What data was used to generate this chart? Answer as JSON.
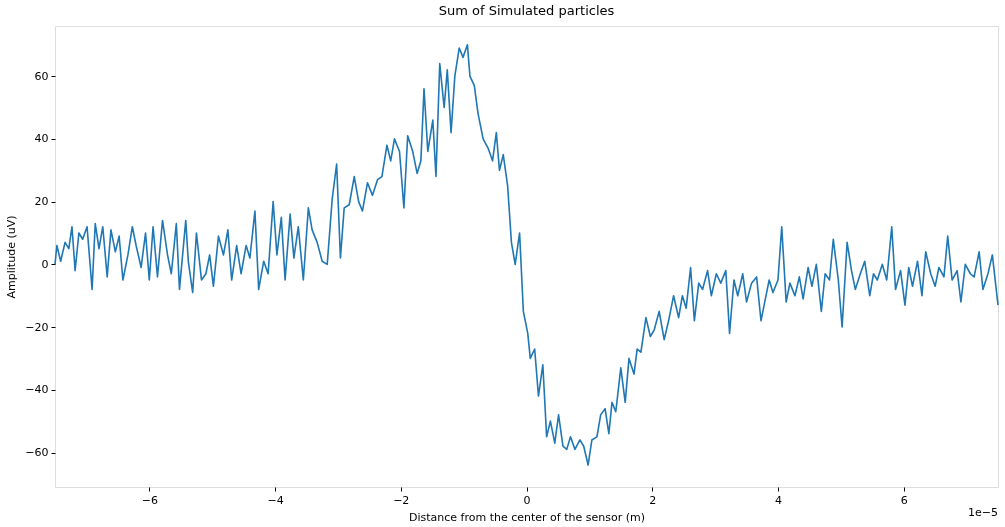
{
  "chart_data": {
    "type": "line",
    "title": "Sum of Simulated particles",
    "xlabel": "Distance from the center of the sensor (m)",
    "ylabel": "Amplitude (uV)",
    "annotations": [
      "1e−5"
    ],
    "x": [
      -7.5,
      -7.47,
      -7.41,
      -7.34,
      -7.28,
      -7.23,
      -7.18,
      -7.12,
      -7.06,
      -6.99,
      -6.91,
      -6.86,
      -6.8,
      -6.74,
      -6.67,
      -6.61,
      -6.54,
      -6.48,
      -6.42,
      -6.34,
      -6.27,
      -6.21,
      -6.13,
      -6.06,
      -6.0,
      -5.94,
      -5.87,
      -5.79,
      -5.71,
      -5.65,
      -5.57,
      -5.52,
      -5.42,
      -5.38,
      -5.31,
      -5.25,
      -5.17,
      -5.1,
      -5.04,
      -4.98,
      -4.9,
      -4.82,
      -4.75,
      -4.69,
      -4.61,
      -4.54,
      -4.46,
      -4.4,
      -4.32,
      -4.26,
      -4.18,
      -4.11,
      -4.03,
      -3.97,
      -3.9,
      -3.84,
      -3.76,
      -3.7,
      -3.63,
      -3.55,
      -3.47,
      -3.41,
      -3.33,
      -3.25,
      -3.17,
      -3.09,
      -3.02,
      -2.96,
      -2.9,
      -2.82,
      -2.74,
      -2.67,
      -2.61,
      -2.53,
      -2.45,
      -2.37,
      -2.3,
      -2.22,
      -2.16,
      -2.1,
      -2.02,
      -1.95,
      -1.89,
      -1.81,
      -1.74,
      -1.68,
      -1.63,
      -1.57,
      -1.49,
      -1.44,
      -1.38,
      -1.31,
      -1.26,
      -1.2,
      -1.14,
      -1.07,
      -1.01,
      -0.94,
      -0.9,
      -0.83,
      -0.77,
      -0.69,
      -0.61,
      -0.54,
      -0.48,
      -0.43,
      -0.37,
      -0.3,
      -0.24,
      -0.18,
      -0.11,
      -0.05,
      0.02,
      0.06,
      0.13,
      0.19,
      0.26,
      0.32,
      0.38,
      0.45,
      0.51,
      0.58,
      0.64,
      0.7,
      0.77,
      0.85,
      0.91,
      0.98,
      1.04,
      1.12,
      1.18,
      1.25,
      1.31,
      1.36,
      1.42,
      1.5,
      1.57,
      1.63,
      1.71,
      1.76,
      1.82,
      1.9,
      1.97,
      2.03,
      2.11,
      2.19,
      2.26,
      2.34,
      2.42,
      2.48,
      2.54,
      2.61,
      2.67,
      2.74,
      2.8,
      2.88,
      2.94,
      3.02,
      3.09,
      3.17,
      3.23,
      3.3,
      3.36,
      3.44,
      3.5,
      3.58,
      3.66,
      3.73,
      3.81,
      3.86,
      3.92,
      4.0,
      4.06,
      4.13,
      4.19,
      4.27,
      4.34,
      4.4,
      4.48,
      4.54,
      4.61,
      4.69,
      4.75,
      4.82,
      4.88,
      4.96,
      5.02,
      5.1,
      5.17,
      5.23,
      5.31,
      5.38,
      5.46,
      5.52,
      5.58,
      5.66,
      5.73,
      5.81,
      5.87,
      5.95,
      6.02,
      6.08,
      6.14,
      6.22,
      6.29,
      6.35,
      6.43,
      6.5,
      6.56,
      6.64,
      6.7,
      6.77,
      6.85,
      6.91,
      6.98,
      7.06,
      7.12,
      7.2,
      7.26,
      7.34,
      7.41,
      7.5
    ],
    "series": [
      {
        "color": "#1f77b4",
        "values": [
          0,
          6,
          1,
          7,
          5,
          12,
          -2,
          10,
          8,
          12,
          -8,
          13,
          5,
          12,
          -4,
          11,
          4,
          9,
          -5,
          3,
          12,
          6,
          -1,
          10,
          -5,
          12,
          -4,
          14,
          3,
          -3,
          13,
          -8,
          14,
          1,
          -9,
          10,
          -5,
          -3,
          3,
          -7,
          9,
          3,
          11,
          -5,
          6,
          -3,
          6,
          2,
          17,
          -8,
          1,
          -3,
          20,
          3,
          15,
          -5,
          16,
          2,
          12,
          -5,
          18,
          11,
          7,
          1,
          0,
          21,
          32,
          2,
          18,
          19,
          28,
          20,
          17,
          26,
          22,
          27,
          28,
          38,
          33,
          40,
          36,
          18,
          41,
          36,
          29,
          33,
          56,
          36,
          46,
          28,
          64,
          50,
          62,
          42,
          60,
          69,
          66,
          70,
          60,
          57,
          48,
          40,
          37,
          33,
          42,
          30,
          35,
          25,
          7,
          0,
          10,
          -15,
          -22,
          -30,
          -27,
          -42,
          -32,
          -55,
          -50,
          -57,
          -48,
          -58,
          -59,
          -55,
          -59,
          -56,
          -58,
          -64,
          -56,
          -55,
          -48,
          -46,
          -54,
          -44,
          -47,
          -33,
          -44,
          -30,
          -35,
          -27,
          -28,
          -17,
          -23,
          -21,
          -15,
          -24,
          -18,
          -10,
          -17,
          -10,
          -14,
          -1,
          -18,
          -6,
          -8,
          -2,
          -10,
          -3,
          -6,
          -2,
          -22,
          -5,
          -10,
          -3,
          -12,
          -6,
          -4,
          -18,
          -10,
          -5,
          -9,
          -5,
          12,
          -12,
          -6,
          -10,
          -4,
          -11,
          -1,
          -7,
          0,
          -15,
          -3,
          -5,
          8,
          -5,
          -20,
          7,
          -2,
          -8,
          -3,
          1,
          -10,
          -3,
          -5,
          0,
          -5,
          12,
          -8,
          -2,
          -13,
          -1,
          -7,
          1,
          -10,
          4,
          -3,
          -7,
          -1,
          -4,
          9,
          -5,
          -2,
          -12,
          0,
          -3,
          -4,
          4,
          -8,
          -3,
          3,
          -13
        ]
      }
    ],
    "xlim": [
      -7.5,
      7.5
    ],
    "xticks": [
      {
        "value": -6,
        "label": "−6"
      },
      {
        "value": -4,
        "label": "−4"
      },
      {
        "value": -2,
        "label": "−2"
      },
      0,
      2,
      4,
      6
    ],
    "ylim": [
      -71,
      76
    ],
    "yticks": [
      {
        "value": -60,
        "label": "−60"
      },
      {
        "value": -40,
        "label": "−40"
      },
      {
        "value": -20,
        "label": "−20"
      },
      0,
      20,
      40,
      60
    ],
    "grid": false
  }
}
